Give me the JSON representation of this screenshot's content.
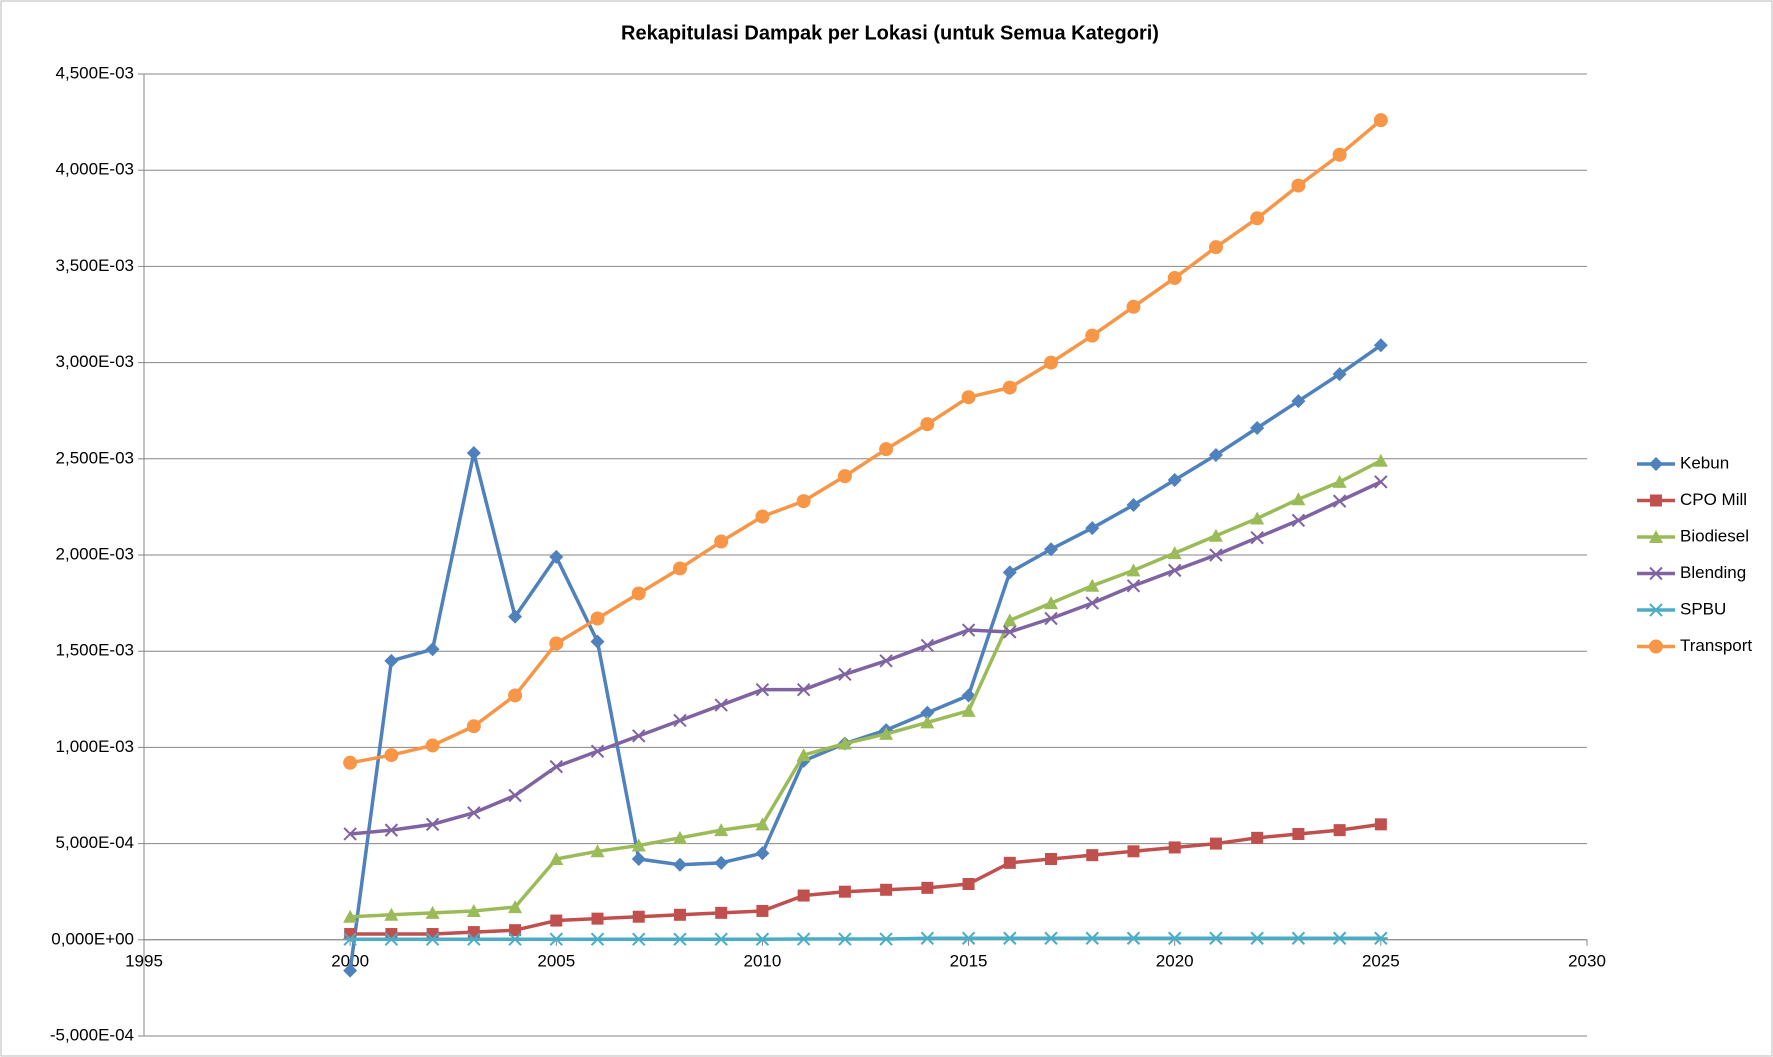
{
  "chart_data": {
    "type": "line",
    "title": "Rekapitulasi Dampak per Lokasi (untuk Semua Kategori)",
    "x": [
      2000,
      2001,
      2002,
      2003,
      2004,
      2005,
      2006,
      2007,
      2008,
      2009,
      2010,
      2011,
      2012,
      2013,
      2014,
      2015,
      2016,
      2017,
      2018,
      2019,
      2020,
      2021,
      2022,
      2023,
      2024,
      2025
    ],
    "xlim": [
      1995,
      2030
    ],
    "xticks": [
      1995,
      2000,
      2005,
      2010,
      2015,
      2020,
      2025,
      2030
    ],
    "ylim": [
      -0.0005,
      0.0045
    ],
    "yticks": [
      {
        "value": -0.0005,
        "label": "-5,000E-04"
      },
      {
        "value": 0,
        "label": "0,000E+00"
      },
      {
        "value": 0.0005,
        "label": "5,000E-04"
      },
      {
        "value": 0.001,
        "label": "1,000E-03"
      },
      {
        "value": 0.0015,
        "label": "1,500E-03"
      },
      {
        "value": 0.002,
        "label": "2,000E-03"
      },
      {
        "value": 0.0025,
        "label": "2,500E-03"
      },
      {
        "value": 0.003,
        "label": "3,000E-03"
      },
      {
        "value": 0.0035,
        "label": "3,500E-03"
      },
      {
        "value": 0.004,
        "label": "4,000E-03"
      },
      {
        "value": 0.0045,
        "label": "4,500E-03"
      }
    ],
    "grid": true,
    "legend": "right",
    "series": [
      {
        "name": "Kebun",
        "color": "#4f81bd",
        "marker": "diamond",
        "values": [
          -0.00016,
          0.00145,
          0.00151,
          0.00253,
          0.00168,
          0.00199,
          0.00155,
          0.00042,
          0.00039,
          0.0004,
          0.00045,
          0.00093,
          0.00102,
          0.00109,
          0.00118,
          0.00127,
          0.00191,
          0.00203,
          0.00214,
          0.00226,
          0.00239,
          0.00252,
          0.00266,
          0.0028,
          0.00294,
          0.00309
        ]
      },
      {
        "name": "CPO Mill",
        "color": "#c0504d",
        "marker": "square",
        "values": [
          3e-05,
          3e-05,
          3e-05,
          4e-05,
          5e-05,
          0.0001,
          0.00011,
          0.00012,
          0.00013,
          0.00014,
          0.00015,
          0.00023,
          0.00025,
          0.00026,
          0.00027,
          0.00029,
          0.0004,
          0.00042,
          0.00044,
          0.00046,
          0.00048,
          0.0005,
          0.00053,
          0.00055,
          0.00057,
          0.0006
        ]
      },
      {
        "name": "Biodiesel",
        "color": "#9bbb59",
        "marker": "triangle",
        "values": [
          0.00012,
          0.00013,
          0.00014,
          0.00015,
          0.00017,
          0.00042,
          0.00046,
          0.00049,
          0.00053,
          0.00057,
          0.0006,
          0.00096,
          0.00102,
          0.00107,
          0.00113,
          0.00119,
          0.00166,
          0.00175,
          0.00184,
          0.00192,
          0.00201,
          0.0021,
          0.00219,
          0.00229,
          0.00238,
          0.00249
        ]
      },
      {
        "name": "Blending",
        "color": "#8064a2",
        "marker": "x",
        "values": [
          0.00055,
          0.00057,
          0.0006,
          0.00066,
          0.00075,
          0.0009,
          0.00098,
          0.00106,
          0.00114,
          0.00122,
          0.0013,
          0.0013,
          0.00138,
          0.00145,
          0.00153,
          0.00161,
          0.0016,
          0.00167,
          0.00175,
          0.00184,
          0.00192,
          0.002,
          0.00209,
          0.00218,
          0.00228,
          0.00238
        ]
      },
      {
        "name": "SPBU",
        "color": "#4bacc6",
        "marker": "star",
        "values": [
          3e-06,
          3e-06,
          3e-06,
          3e-06,
          3e-06,
          3e-06,
          3e-06,
          3e-06,
          3e-06,
          3e-06,
          3e-06,
          4e-06,
          4e-06,
          4e-06,
          8e-06,
          8e-06,
          8e-06,
          8e-06,
          8e-06,
          8e-06,
          8e-06,
          8e-06,
          8e-06,
          8e-06,
          8e-06,
          8e-06
        ]
      },
      {
        "name": "Transport",
        "color": "#f79646",
        "marker": "circle",
        "values": [
          0.00092,
          0.00096,
          0.00101,
          0.00111,
          0.00127,
          0.00154,
          0.00167,
          0.0018,
          0.00193,
          0.00207,
          0.0022,
          0.00228,
          0.00241,
          0.00255,
          0.00268,
          0.00282,
          0.00287,
          0.003,
          0.00314,
          0.00329,
          0.00344,
          0.0036,
          0.00375,
          0.00392,
          0.00408,
          0.00426
        ]
      }
    ]
  }
}
